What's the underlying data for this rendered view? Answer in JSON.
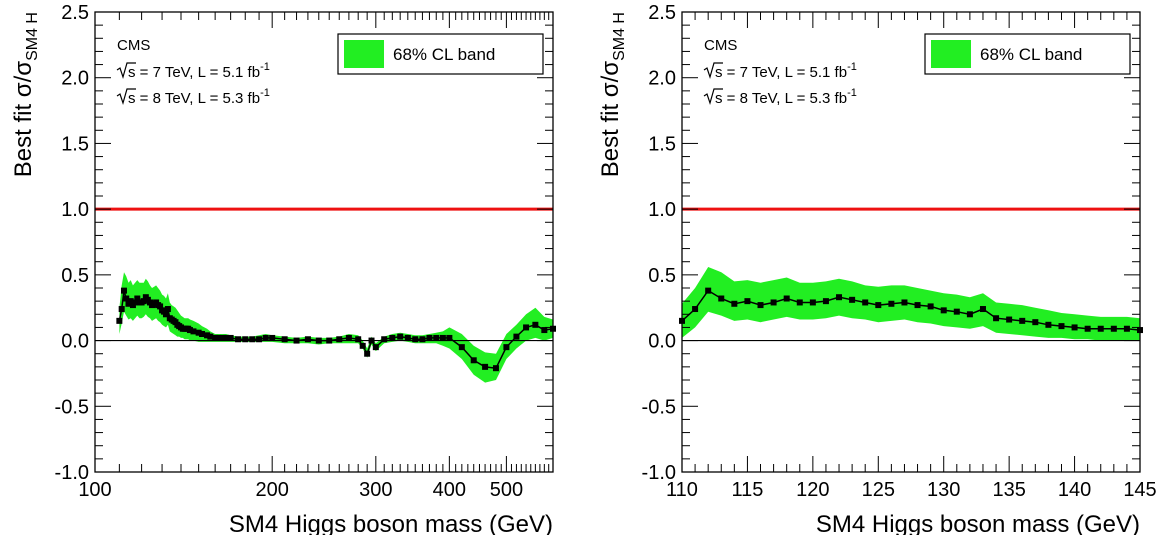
{
  "chart_data": [
    {
      "type": "line",
      "id": "wide",
      "xscale": "log",
      "xlim": [
        100,
        600
      ],
      "ylim": [
        -1.0,
        2.5
      ],
      "xticks": [
        100,
        200,
        300,
        400,
        500
      ],
      "xtick_labels": [
        "100",
        "200",
        "300",
        "400",
        "500"
      ],
      "yticks": [
        -1.0,
        -0.5,
        0.0,
        0.5,
        1.0,
        1.5,
        2.0,
        2.5
      ],
      "ytick_labels": [
        "-1.0",
        "-0.5",
        "0.0",
        "0.5",
        "1.0",
        "1.5",
        "2.0",
        "2.5"
      ],
      "xlabel": "SM4 Higgs boson mass (GeV)",
      "ylabel_main": "Best fit σ/σ",
      "ylabel_sub": "SM4 H",
      "reference_line": {
        "y": 1.0,
        "color": "#ee1111"
      },
      "zero_line": {
        "y": 0.0,
        "color": "#000000"
      },
      "band_color": "#22ee22",
      "legend": {
        "label": "68% CL band",
        "position": "top-right"
      },
      "annotations": {
        "experiment": "CMS",
        "lines": [
          {
            "sqrt": "s",
            "rest": " = 7 TeV, L = 5.1 fb",
            "sup": "-1"
          },
          {
            "sqrt": "s",
            "rest": " = 8 TeV, L = 5.3 fb",
            "sup": "-1"
          }
        ]
      },
      "series": [
        {
          "x": [
            110,
            111,
            112,
            113,
            114,
            115,
            116,
            117,
            118,
            119,
            120,
            121,
            122,
            123,
            124,
            125,
            126,
            127,
            128,
            129,
            130,
            131,
            132,
            133,
            134,
            135,
            136,
            137,
            138,
            139,
            140,
            141,
            142,
            143,
            144,
            145,
            147,
            150,
            152,
            155,
            157,
            160,
            162,
            165,
            167,
            170,
            175,
            180,
            185,
            190,
            195,
            200,
            210,
            220,
            230,
            240,
            250,
            260,
            270,
            280,
            285,
            290,
            295,
            300,
            310,
            320,
            330,
            340,
            350,
            360,
            370,
            380,
            390,
            400,
            420,
            440,
            460,
            480,
            500,
            520,
            540,
            560,
            580,
            600
          ],
          "y": [
            0.15,
            0.24,
            0.38,
            0.32,
            0.28,
            0.3,
            0.27,
            0.29,
            0.32,
            0.29,
            0.29,
            0.3,
            0.33,
            0.31,
            0.29,
            0.27,
            0.28,
            0.29,
            0.27,
            0.26,
            0.23,
            0.22,
            0.2,
            0.24,
            0.17,
            0.16,
            0.15,
            0.14,
            0.12,
            0.11,
            0.1,
            0.09,
            0.09,
            0.09,
            0.09,
            0.08,
            0.07,
            0.06,
            0.05,
            0.04,
            0.03,
            0.02,
            0.02,
            0.02,
            0.02,
            0.02,
            0.01,
            0.01,
            0.01,
            0.01,
            0.02,
            0.02,
            0.01,
            0.0,
            0.01,
            0.0,
            0.0,
            0.01,
            0.02,
            0.01,
            -0.04,
            -0.1,
            0.0,
            -0.05,
            0.01,
            0.02,
            0.03,
            0.02,
            0.01,
            0.01,
            0.02,
            0.02,
            0.02,
            0.02,
            -0.05,
            -0.15,
            -0.2,
            -0.21,
            -0.05,
            0.03,
            0.1,
            0.12,
            0.08,
            0.09
          ],
          "lower": [
            0.05,
            0.13,
            0.22,
            0.19,
            0.16,
            0.17,
            0.15,
            0.17,
            0.19,
            0.17,
            0.17,
            0.18,
            0.2,
            0.18,
            0.17,
            0.15,
            0.16,
            0.17,
            0.15,
            0.14,
            0.12,
            0.11,
            0.1,
            0.12,
            0.07,
            0.06,
            0.05,
            0.04,
            0.03,
            0.03,
            0.02,
            0.02,
            0.01,
            0.01,
            0.01,
            0.0,
            0.0,
            -0.01,
            -0.01,
            -0.01,
            -0.01,
            -0.01,
            -0.01,
            -0.01,
            -0.01,
            -0.01,
            -0.01,
            -0.01,
            -0.01,
            -0.01,
            -0.01,
            -0.01,
            -0.02,
            -0.02,
            -0.02,
            -0.03,
            -0.02,
            -0.02,
            -0.02,
            -0.02,
            -0.06,
            -0.13,
            -0.03,
            -0.08,
            -0.02,
            -0.01,
            0.0,
            -0.01,
            -0.02,
            -0.02,
            -0.02,
            -0.02,
            -0.04,
            -0.06,
            -0.14,
            -0.26,
            -0.32,
            -0.3,
            -0.14,
            -0.06,
            0.0,
            0.02,
            0.0,
            0.02
          ],
          "upper": [
            0.25,
            0.42,
            0.52,
            0.49,
            0.44,
            0.46,
            0.42,
            0.44,
            0.46,
            0.44,
            0.44,
            0.44,
            0.47,
            0.45,
            0.42,
            0.4,
            0.41,
            0.42,
            0.4,
            0.38,
            0.35,
            0.34,
            0.32,
            0.36,
            0.29,
            0.27,
            0.26,
            0.25,
            0.23,
            0.21,
            0.19,
            0.18,
            0.17,
            0.17,
            0.17,
            0.16,
            0.15,
            0.13,
            0.11,
            0.09,
            0.07,
            0.05,
            0.05,
            0.05,
            0.05,
            0.04,
            0.03,
            0.03,
            0.03,
            0.04,
            0.05,
            0.04,
            0.03,
            0.02,
            0.03,
            0.02,
            0.02,
            0.03,
            0.05,
            0.04,
            0.0,
            -0.06,
            0.03,
            -0.02,
            0.03,
            0.05,
            0.06,
            0.05,
            0.04,
            0.04,
            0.05,
            0.06,
            0.07,
            0.1,
            0.05,
            -0.04,
            -0.09,
            -0.1,
            0.05,
            0.12,
            0.2,
            0.25,
            0.18,
            0.16
          ]
        }
      ]
    },
    {
      "type": "line",
      "id": "zoom",
      "xscale": "linear",
      "xlim": [
        110,
        145
      ],
      "ylim": [
        -1.0,
        2.5
      ],
      "xticks": [
        110,
        115,
        120,
        125,
        130,
        135,
        140,
        145
      ],
      "xtick_labels": [
        "110",
        "115",
        "120",
        "125",
        "130",
        "135",
        "140",
        "145"
      ],
      "yticks": [
        -1.0,
        -0.5,
        0.0,
        0.5,
        1.0,
        1.5,
        2.0,
        2.5
      ],
      "ytick_labels": [
        "-1.0",
        "-0.5",
        "0.0",
        "0.5",
        "1.0",
        "1.5",
        "2.0",
        "2.5"
      ],
      "xlabel": "SM4 Higgs boson mass (GeV)",
      "ylabel_main": "Best fit σ/σ",
      "ylabel_sub": "SM4 H",
      "reference_line": {
        "y": 1.0,
        "color": "#ee1111"
      },
      "zero_line": {
        "y": 0.0,
        "color": "#000000"
      },
      "band_color": "#22ee22",
      "legend": {
        "label": "68% CL band",
        "position": "top-right"
      },
      "annotations": {
        "experiment": "CMS",
        "lines": [
          {
            "sqrt": "s",
            "rest": " = 7 TeV, L = 5.1 fb",
            "sup": "-1"
          },
          {
            "sqrt": "s",
            "rest": " = 8 TeV, L = 5.3 fb",
            "sup": "-1"
          }
        ]
      },
      "series": [
        {
          "x": [
            110,
            111,
            112,
            113,
            114,
            115,
            116,
            117,
            118,
            119,
            120,
            121,
            122,
            123,
            124,
            125,
            126,
            127,
            128,
            129,
            130,
            131,
            132,
            133,
            134,
            135,
            136,
            137,
            138,
            139,
            140,
            141,
            142,
            143,
            144,
            145
          ],
          "y": [
            0.15,
            0.24,
            0.38,
            0.32,
            0.28,
            0.3,
            0.27,
            0.29,
            0.32,
            0.29,
            0.29,
            0.3,
            0.33,
            0.31,
            0.29,
            0.27,
            0.28,
            0.29,
            0.27,
            0.26,
            0.23,
            0.22,
            0.2,
            0.24,
            0.17,
            0.16,
            0.15,
            0.14,
            0.12,
            0.11,
            0.1,
            0.09,
            0.09,
            0.09,
            0.09,
            0.08
          ],
          "lower": [
            0.02,
            0.1,
            0.22,
            0.19,
            0.15,
            0.16,
            0.14,
            0.16,
            0.18,
            0.16,
            0.16,
            0.17,
            0.19,
            0.17,
            0.16,
            0.14,
            0.15,
            0.16,
            0.14,
            0.13,
            0.11,
            0.1,
            0.09,
            0.11,
            0.06,
            0.05,
            0.04,
            0.03,
            0.02,
            0.02,
            0.01,
            0.01,
            0.0,
            0.0,
            0.0,
            0.0
          ],
          "upper": [
            0.28,
            0.4,
            0.56,
            0.52,
            0.45,
            0.46,
            0.44,
            0.46,
            0.48,
            0.44,
            0.44,
            0.45,
            0.47,
            0.45,
            0.42,
            0.41,
            0.42,
            0.42,
            0.4,
            0.38,
            0.36,
            0.35,
            0.33,
            0.36,
            0.29,
            0.28,
            0.27,
            0.25,
            0.23,
            0.21,
            0.2,
            0.19,
            0.18,
            0.18,
            0.18,
            0.17
          ]
        }
      ]
    }
  ]
}
